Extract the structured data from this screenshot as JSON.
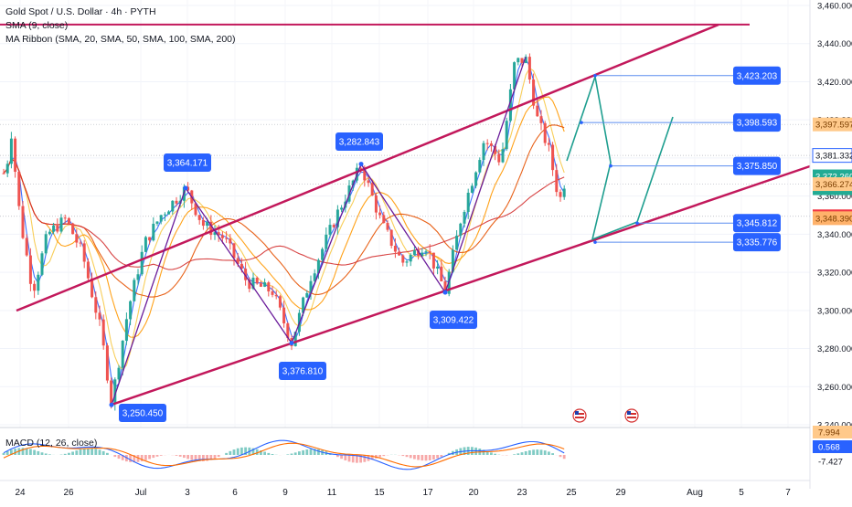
{
  "header": {
    "symbol_line": "Gold Spot / U.S. Dollar · 4h · PYTH",
    "sma_label": "SMA (9, close)",
    "ribbon_label": "MA Ribbon (SMA, 20, SMA, 50, SMA, 100, SMA, 200)"
  },
  "macd_label": "MACD (12, 26, close)",
  "chart_data": {
    "type": "line",
    "title": "Gold Spot / U.S. Dollar · 4h · PYTH",
    "ylim": [
      3240,
      3460
    ],
    "yticks": [
      "3,460.000",
      "3,440.000",
      "3,420.000",
      "3,400.000",
      "3,380.000",
      "3,360.000",
      "3,340.000",
      "3,320.000",
      "3,300.000",
      "3,280.000",
      "3,260.000",
      "3,240.000"
    ],
    "xticks": [
      "24",
      "26",
      "Jul",
      "3",
      "6",
      "9",
      "11",
      "15",
      "17",
      "20",
      "23",
      "25",
      "29",
      "Aug",
      "5",
      "7"
    ],
    "price_path": [
      {
        "label": "3,250.450",
        "value": 3250.45
      },
      {
        "label": "3,364.171",
        "value": 3364.171
      },
      {
        "label": "3,282.843",
        "value": 3282.843
      },
      {
        "label": "3,376.810",
        "value": 3376.81
      },
      {
        "label": "3,309.422",
        "value": 3309.422
      }
    ],
    "projection_labels": [
      {
        "label": "3,423.203",
        "value": 3423.203
      },
      {
        "label": "3,398.593",
        "value": 3398.593
      },
      {
        "label": "3,375.850",
        "value": 3375.85
      },
      {
        "label": "3,345.812",
        "value": 3345.812
      },
      {
        "label": "3,335.776",
        "value": 3335.776
      }
    ],
    "price_badges": [
      {
        "text": "3,397.597",
        "value": 3397.597,
        "color": "#ffc98a",
        "text_color": "#7a3d00"
      },
      {
        "text": "3,381.332",
        "value": 3381.332,
        "color": "#ffffff",
        "text_color": "#131722",
        "border": "#2962ff"
      },
      {
        "text": "3,372.260",
        "value": 3372.26,
        "color": "#22ab94",
        "text_color": "#ffffff",
        "sub": "01:09:05"
      },
      {
        "text": "3,366.274",
        "value": 3366.274,
        "color": "#ffc98a",
        "text_color": "#7a3d00"
      },
      {
        "text": "3,349.387",
        "value": 3349.387,
        "color": "#f23645",
        "text_color": "#ffffff"
      },
      {
        "text": "3,348.390",
        "value": 3348.39,
        "color": "#ffb26b",
        "text_color": "#7a3d00"
      }
    ],
    "macd_axis": [
      {
        "text": "7.994",
        "color": "#ffc98a",
        "text_color": "#7a3d00"
      },
      {
        "text": "0.568",
        "color": "#2962ff",
        "text_color": "#ffffff"
      },
      {
        "text": "-7.427",
        "color": "#ffffff",
        "text_color": "#131722"
      }
    ],
    "colors": {
      "up": "#26a69a",
      "down": "#ef5350",
      "channel": "#c2185b",
      "projection": "#1e9e8f",
      "sma9": "#2962ff",
      "ma20": "#f7c948",
      "ma50": "#ff9800",
      "ma100": "#e65100",
      "ma200": "#d32f2f",
      "label_bg": "#2962ff"
    }
  }
}
